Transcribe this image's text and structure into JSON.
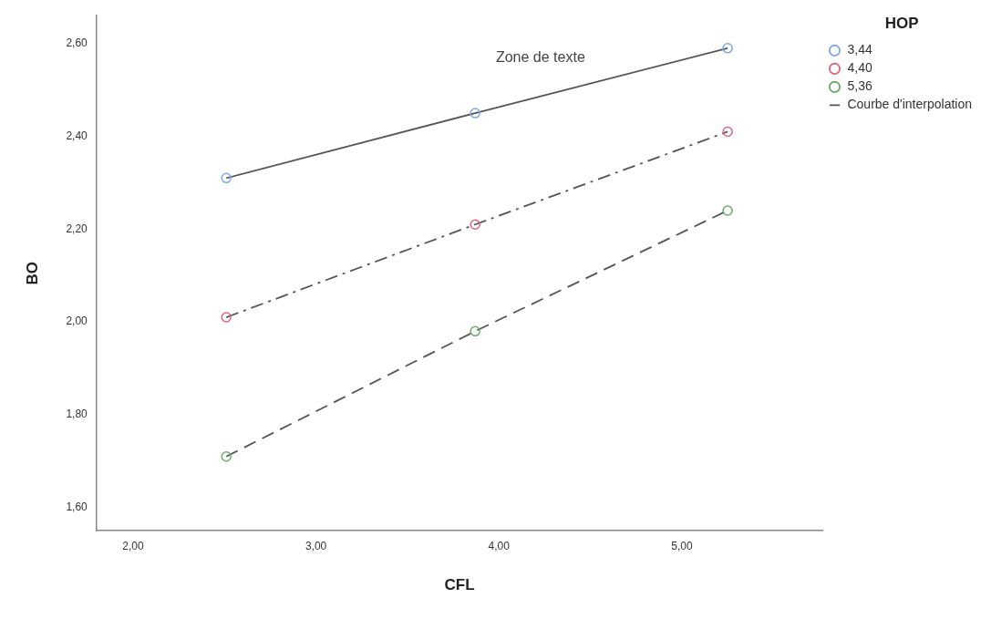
{
  "chart_data": {
    "type": "scatter",
    "xlabel": "CFL",
    "ylabel": "BO",
    "legend_title": "HOP",
    "legend": "right",
    "grid": false,
    "marker": "circle",
    "annotations": [
      "Zone de texte"
    ],
    "xlim": [
      1.8,
      5.77
    ],
    "ylim": [
      1.55,
      2.66
    ],
    "xticks": [
      {
        "value": 2,
        "label": "2,00"
      },
      {
        "value": 3,
        "label": "3,00"
      },
      {
        "value": 4,
        "label": "4,00"
      },
      {
        "value": 5,
        "label": "5,00"
      }
    ],
    "yticks": [
      {
        "value": 1.6,
        "label": "1,60"
      },
      {
        "value": 1.8,
        "label": "1,80"
      },
      {
        "value": 2.0,
        "label": "2,00"
      },
      {
        "value": 2.2,
        "label": "2,20"
      },
      {
        "value": 2.4,
        "label": "2,40"
      },
      {
        "value": 2.6,
        "label": "2,60"
      }
    ],
    "x": [
      2.51,
      3.87,
      5.25
    ],
    "series": [
      {
        "name": "3,44",
        "color": "#7fa9e6",
        "values": [
          2.31,
          2.45,
          2.59
        ]
      },
      {
        "name": "4,40",
        "color": "#e0667f",
        "values": [
          2.01,
          2.21,
          2.41
        ]
      },
      {
        "name": "5,36",
        "color": "#6aab6a",
        "values": [
          1.71,
          1.98,
          2.24
        ]
      },
      {
        "type": "line",
        "name": "Courbe d'interpolation",
        "color": "#555555",
        "line_style": "solid",
        "marker": "none",
        "x": [
          2.51,
          3.87,
          5.25
        ],
        "values": [
          2.31,
          2.45,
          2.59
        ]
      },
      {
        "type": "line",
        "color": "#555555",
        "line_style": "dashdot",
        "marker": "none",
        "x": [
          2.51,
          3.87,
          5.25
        ],
        "values": [
          2.01,
          2.21,
          2.41
        ]
      },
      {
        "type": "line",
        "color": "#555555",
        "line_style": "dashed",
        "marker": "none",
        "x": [
          2.51,
          3.87,
          5.25
        ],
        "values": [
          1.71,
          1.98,
          2.24
        ]
      }
    ]
  }
}
